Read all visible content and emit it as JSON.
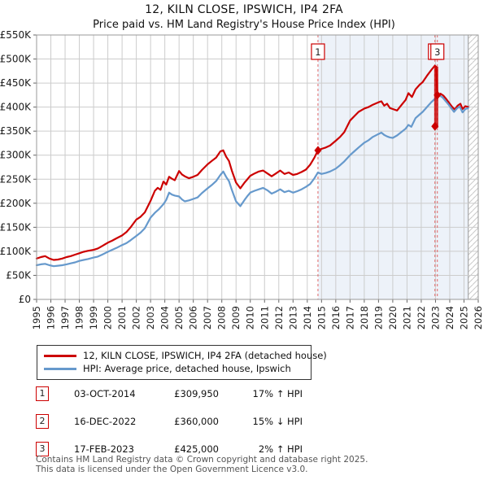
{
  "title": "12, KILN CLOSE, IPSWICH, IP4 2FA",
  "subtitle": "Price paid vs. HM Land Registry's House Price Index (HPI)",
  "legend": [
    {
      "label": "12, KILN CLOSE, IPSWICH, IP4 2FA (detached house)",
      "color": "#cc0000"
    },
    {
      "label": "HPI: Average price, detached house, Ipswich",
      "color": "#6699cc"
    }
  ],
  "transactions": [
    {
      "num": "1",
      "date": "03-OCT-2014",
      "price": "£309,950",
      "hpi": "17% ↑ HPI"
    },
    {
      "num": "2",
      "date": "16-DEC-2022",
      "price": "£360,000",
      "hpi": "15% ↓ HPI"
    },
    {
      "num": "3",
      "date": "17-FEB-2023",
      "price": "£425,000",
      "hpi": "2% ↑ HPI"
    }
  ],
  "footer": [
    "Contains HM Land Registry data © Crown copyright and database right 2025.",
    "This data is licensed under the Open Government Licence v3.0."
  ],
  "chart_data": {
    "type": "line",
    "x_range": [
      1995,
      2026
    ],
    "y_range": [
      0,
      550
    ],
    "x_tick_labels": [
      "1995",
      "1996",
      "1997",
      "1998",
      "1999",
      "2000",
      "2001",
      "2002",
      "2003",
      "2004",
      "2005",
      "2006",
      "2007",
      "2008",
      "2009",
      "2010",
      "2011",
      "2012",
      "2013",
      "2014",
      "2015",
      "2016",
      "2017",
      "2018",
      "2019",
      "2020",
      "2021",
      "2022",
      "2023",
      "2024",
      "2025",
      "2026"
    ],
    "y_ticks": [
      0,
      50,
      100,
      150,
      200,
      250,
      300,
      350,
      400,
      450,
      500,
      550
    ],
    "y_tick_labels": [
      "£0",
      "£50K",
      "£100K",
      "£150K",
      "£200K",
      "£250K",
      "£300K",
      "£350K",
      "£400K",
      "£450K",
      "£500K",
      "£550K"
    ],
    "ylabel_units": "GBP thousands",
    "grid": true,
    "legend_position": "below",
    "shade": {
      "from": 2014.75,
      "to": 2025.3
    },
    "hatch": {
      "from": 2025.3,
      "to": 2026
    },
    "sales": [
      {
        "label": "1",
        "x": 2014.75,
        "value_k": 309.95
      },
      {
        "label": "2",
        "x": 2022.96,
        "value_k": 360
      },
      {
        "label": "3",
        "x": 2023.13,
        "value_k": 425
      }
    ],
    "drop_bar": {
      "x": 2023.05,
      "top_k": 484,
      "bottom_k": 357
    },
    "colors": {
      "red": "#cc0000",
      "blue": "#6699cc",
      "shade": "#edf2f9",
      "grid": "#cccccc",
      "border": "#999999",
      "dash": "#e06666",
      "hatch": "#c9c9c9",
      "axis_text": "#1a1a1a"
    },
    "series": [
      {
        "name": "12, KILN CLOSE, IPSWICH, IP4 2FA (detached house)",
        "color": "#cc0000",
        "points": [
          [
            1995.0,
            85
          ],
          [
            1995.3,
            88
          ],
          [
            1995.6,
            90
          ],
          [
            1995.9,
            85
          ],
          [
            1996.2,
            82
          ],
          [
            1996.5,
            83
          ],
          [
            1996.8,
            85
          ],
          [
            1997.1,
            88
          ],
          [
            1997.4,
            90
          ],
          [
            1997.7,
            93
          ],
          [
            1998.0,
            96
          ],
          [
            1998.3,
            99
          ],
          [
            1998.6,
            101
          ],
          [
            1999.0,
            103
          ],
          [
            1999.3,
            106
          ],
          [
            1999.6,
            111
          ],
          [
            2000.0,
            118
          ],
          [
            2000.3,
            122
          ],
          [
            2000.6,
            127
          ],
          [
            2001.0,
            133
          ],
          [
            2001.3,
            140
          ],
          [
            2001.6,
            150
          ],
          [
            2002.0,
            166
          ],
          [
            2002.3,
            172
          ],
          [
            2002.6,
            181
          ],
          [
            2003.0,
            205
          ],
          [
            2003.3,
            226
          ],
          [
            2003.5,
            232
          ],
          [
            2003.7,
            228
          ],
          [
            2003.9,
            245
          ],
          [
            2004.1,
            239
          ],
          [
            2004.3,
            255
          ],
          [
            2004.5,
            251
          ],
          [
            2004.7,
            248
          ],
          [
            2005.0,
            267
          ],
          [
            2005.2,
            260
          ],
          [
            2005.4,
            256
          ],
          [
            2005.7,
            252
          ],
          [
            2006.0,
            255
          ],
          [
            2006.3,
            259
          ],
          [
            2006.6,
            269
          ],
          [
            2007.0,
            281
          ],
          [
            2007.3,
            288
          ],
          [
            2007.6,
            295
          ],
          [
            2007.9,
            308
          ],
          [
            2008.1,
            310
          ],
          [
            2008.3,
            297
          ],
          [
            2008.5,
            288
          ],
          [
            2008.7,
            268
          ],
          [
            2009.0,
            243
          ],
          [
            2009.3,
            231
          ],
          [
            2009.6,
            243
          ],
          [
            2009.8,
            250
          ],
          [
            2010.0,
            257
          ],
          [
            2010.3,
            262
          ],
          [
            2010.6,
            266
          ],
          [
            2010.9,
            268
          ],
          [
            2011.2,
            262
          ],
          [
            2011.5,
            256
          ],
          [
            2011.8,
            262
          ],
          [
            2012.1,
            268
          ],
          [
            2012.4,
            261
          ],
          [
            2012.7,
            264
          ],
          [
            2013.0,
            259
          ],
          [
            2013.3,
            261
          ],
          [
            2013.6,
            265
          ],
          [
            2013.9,
            270
          ],
          [
            2014.2,
            280
          ],
          [
            2014.5,
            295
          ],
          [
            2014.75,
            309.95
          ],
          [
            2015.0,
            313
          ],
          [
            2015.3,
            316
          ],
          [
            2015.6,
            320
          ],
          [
            2016.0,
            330
          ],
          [
            2016.3,
            338
          ],
          [
            2016.6,
            348
          ],
          [
            2017.0,
            372
          ],
          [
            2017.3,
            381
          ],
          [
            2017.6,
            390
          ],
          [
            2018.0,
            397
          ],
          [
            2018.3,
            400
          ],
          [
            2018.6,
            405
          ],
          [
            2019.0,
            410
          ],
          [
            2019.2,
            412
          ],
          [
            2019.4,
            403
          ],
          [
            2019.6,
            407
          ],
          [
            2019.8,
            398
          ],
          [
            2020.0,
            396
          ],
          [
            2020.3,
            393
          ],
          [
            2020.6,
            404
          ],
          [
            2020.9,
            415
          ],
          [
            2021.1,
            429
          ],
          [
            2021.35,
            421
          ],
          [
            2021.6,
            437
          ],
          [
            2021.9,
            447
          ],
          [
            2022.1,
            452
          ],
          [
            2022.4,
            465
          ],
          [
            2022.7,
            477
          ],
          [
            2022.95,
            486
          ],
          [
            2023.05,
            484
          ],
          [
            2023.13,
            425
          ],
          [
            2023.35,
            428
          ],
          [
            2023.55,
            424
          ],
          [
            2023.75,
            417
          ],
          [
            2023.95,
            409
          ],
          [
            2024.15,
            401
          ],
          [
            2024.35,
            395
          ],
          [
            2024.55,
            403
          ],
          [
            2024.75,
            407
          ],
          [
            2024.9,
            396
          ],
          [
            2025.1,
            402
          ],
          [
            2025.3,
            400
          ]
        ]
      },
      {
        "name": "HPI: Average price, detached house, Ipswich",
        "color": "#6699cc",
        "points": [
          [
            1995.0,
            71
          ],
          [
            1995.3,
            73
          ],
          [
            1995.6,
            74
          ],
          [
            1995.9,
            71
          ],
          [
            1996.2,
            69
          ],
          [
            1996.5,
            70
          ],
          [
            1996.8,
            71
          ],
          [
            1997.1,
            73
          ],
          [
            1997.4,
            75
          ],
          [
            1997.7,
            77
          ],
          [
            1998.0,
            80
          ],
          [
            1998.3,
            82
          ],
          [
            1998.6,
            84
          ],
          [
            1999.0,
            87
          ],
          [
            1999.3,
            89
          ],
          [
            1999.6,
            93
          ],
          [
            2000.0,
            99
          ],
          [
            2000.3,
            103
          ],
          [
            2000.6,
            107
          ],
          [
            2001.0,
            113
          ],
          [
            2001.3,
            117
          ],
          [
            2001.6,
            123
          ],
          [
            2002.0,
            132
          ],
          [
            2002.3,
            139
          ],
          [
            2002.6,
            148
          ],
          [
            2003.0,
            170
          ],
          [
            2003.3,
            180
          ],
          [
            2003.6,
            188
          ],
          [
            2003.9,
            198
          ],
          [
            2004.1,
            207
          ],
          [
            2004.3,
            222
          ],
          [
            2004.5,
            218
          ],
          [
            2004.7,
            216
          ],
          [
            2005.0,
            214
          ],
          [
            2005.2,
            208
          ],
          [
            2005.4,
            204
          ],
          [
            2005.7,
            206
          ],
          [
            2006.0,
            209
          ],
          [
            2006.3,
            212
          ],
          [
            2006.6,
            221
          ],
          [
            2007.0,
            231
          ],
          [
            2007.3,
            238
          ],
          [
            2007.6,
            246
          ],
          [
            2007.9,
            259
          ],
          [
            2008.1,
            266
          ],
          [
            2008.3,
            255
          ],
          [
            2008.5,
            246
          ],
          [
            2008.7,
            228
          ],
          [
            2009.0,
            204
          ],
          [
            2009.3,
            194
          ],
          [
            2009.6,
            207
          ],
          [
            2009.8,
            215
          ],
          [
            2010.0,
            222
          ],
          [
            2010.3,
            226
          ],
          [
            2010.6,
            229
          ],
          [
            2010.9,
            232
          ],
          [
            2011.2,
            227
          ],
          [
            2011.5,
            220
          ],
          [
            2011.8,
            224
          ],
          [
            2012.1,
            229
          ],
          [
            2012.4,
            223
          ],
          [
            2012.7,
            226
          ],
          [
            2013.0,
            222
          ],
          [
            2013.3,
            225
          ],
          [
            2013.6,
            229
          ],
          [
            2013.9,
            234
          ],
          [
            2014.2,
            240
          ],
          [
            2014.5,
            252
          ],
          [
            2014.75,
            264
          ],
          [
            2015.0,
            261
          ],
          [
            2015.3,
            263
          ],
          [
            2015.6,
            266
          ],
          [
            2016.0,
            272
          ],
          [
            2016.3,
            279
          ],
          [
            2016.6,
            287
          ],
          [
            2017.0,
            300
          ],
          [
            2017.3,
            308
          ],
          [
            2017.6,
            316
          ],
          [
            2018.0,
            326
          ],
          [
            2018.3,
            331
          ],
          [
            2018.6,
            338
          ],
          [
            2019.0,
            344
          ],
          [
            2019.2,
            347
          ],
          [
            2019.4,
            342
          ],
          [
            2019.6,
            339
          ],
          [
            2019.8,
            337
          ],
          [
            2020.0,
            336
          ],
          [
            2020.3,
            341
          ],
          [
            2020.6,
            348
          ],
          [
            2020.9,
            355
          ],
          [
            2021.1,
            363
          ],
          [
            2021.3,
            359
          ],
          [
            2021.6,
            377
          ],
          [
            2021.9,
            385
          ],
          [
            2022.1,
            390
          ],
          [
            2022.4,
            400
          ],
          [
            2022.7,
            410
          ],
          [
            2022.95,
            417
          ],
          [
            2023.1,
            420
          ],
          [
            2023.3,
            424
          ],
          [
            2023.5,
            420
          ],
          [
            2023.7,
            413
          ],
          [
            2023.9,
            406
          ],
          [
            2024.1,
            398
          ],
          [
            2024.3,
            390
          ],
          [
            2024.5,
            397
          ],
          [
            2024.7,
            401
          ],
          [
            2024.9,
            389
          ],
          [
            2025.1,
            396
          ],
          [
            2025.3,
            398
          ]
        ]
      }
    ]
  }
}
